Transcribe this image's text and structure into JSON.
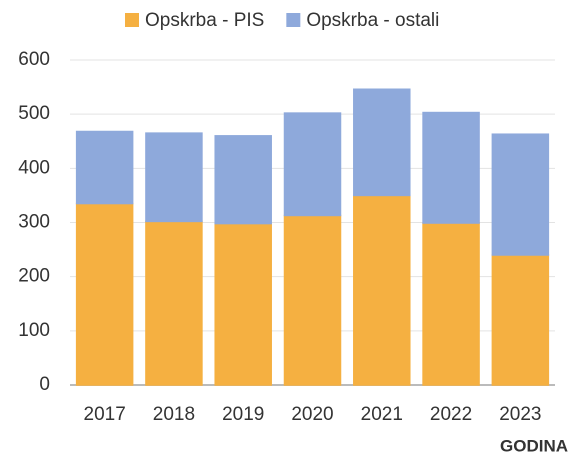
{
  "chart_data": {
    "type": "stacked_bar",
    "categories": [
      "2017",
      "2018",
      "2019",
      "2020",
      "2021",
      "2022",
      "2023"
    ],
    "series": [
      {
        "name": "Opskrba - PIS",
        "color": "#f5b041",
        "values": [
          335,
          302,
          298,
          313,
          350,
          299,
          240
        ]
      },
      {
        "name": "Opskrba - ostali",
        "color": "#8ea9db",
        "values": [
          133,
          163,
          162,
          189,
          196,
          204,
          223
        ]
      }
    ],
    "ylim": [
      0,
      600
    ],
    "yticks": [
      0,
      100,
      200,
      300,
      400,
      500,
      600
    ],
    "x_label": "GODINA",
    "legend": "top"
  }
}
